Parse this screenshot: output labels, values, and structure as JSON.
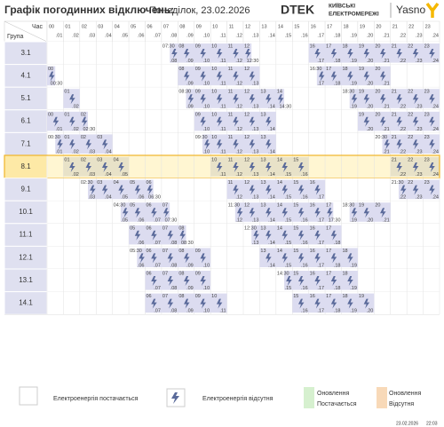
{
  "header": {
    "title": "Графік погодинних відключень:",
    "date": "Понеділок, 23.02.2026",
    "brand": "DTEK",
    "brand_sub": [
      "КИЇВСЬКІ",
      "ЕЛЕКТРОМЕРЕЖІ"
    ],
    "partner": "Yasno"
  },
  "table": {
    "hour_label": "Час",
    "group_label": "Група",
    "highlight_row": 5,
    "columns": [
      {
        "from": "00",
        "to": ".01"
      },
      {
        "from": "01",
        "to": ".02"
      },
      {
        "from": "02",
        "to": ".03"
      },
      {
        "from": "03",
        "to": ".04"
      },
      {
        "from": "04",
        "to": ".05"
      },
      {
        "from": "05",
        "to": ".06"
      },
      {
        "from": "06",
        "to": ".07"
      },
      {
        "from": "07",
        "to": ".08"
      },
      {
        "from": "08",
        "to": ".09"
      },
      {
        "from": "09",
        "to": ".10"
      },
      {
        "from": "10",
        "to": ".11"
      },
      {
        "from": "11",
        "to": ".12"
      },
      {
        "from": "12",
        "to": ".13"
      },
      {
        "from": "13",
        "to": ".14"
      },
      {
        "from": "14",
        "to": ".15"
      },
      {
        "from": "15",
        "to": ".16"
      },
      {
        "from": "16",
        "to": ".17"
      },
      {
        "from": "17",
        "to": ".18"
      },
      {
        "from": "18",
        "to": ".19"
      },
      {
        "from": "19",
        "to": ".20"
      },
      {
        "from": "20",
        "to": ".21"
      },
      {
        "from": "21",
        "to": ".22"
      },
      {
        "from": "22",
        "to": ".23"
      },
      {
        "from": "23",
        "to": ".24"
      }
    ],
    "groups": [
      {
        "name": "3.1",
        "outages": [
          {
            "from": 7.5,
            "to": 12.5,
            "from_label": "07:30",
            "to_label": "12:30"
          },
          {
            "from": 16,
            "to": 24
          }
        ]
      },
      {
        "name": "4.1",
        "outages": [
          {
            "from": 0,
            "to": 0.5,
            "to_label": "00:30"
          },
          {
            "from": 8,
            "to": 13
          },
          {
            "from": 16.5,
            "to": 21,
            "from_label": "16:30"
          }
        ]
      },
      {
        "name": "5.1",
        "outages": [
          {
            "from": 1,
            "to": 2
          },
          {
            "from": 8.5,
            "to": 14.5,
            "from_label": "08:30",
            "to_label": "14:30"
          },
          {
            "from": 18.5,
            "to": 24,
            "from_label": "18:30"
          }
        ]
      },
      {
        "name": "6.1",
        "outages": [
          {
            "from": 0,
            "to": 2.5,
            "to_label": "02:30"
          },
          {
            "from": 9,
            "to": 14
          },
          {
            "from": 19,
            "to": 24
          }
        ]
      },
      {
        "name": "7.1",
        "outages": [
          {
            "from": 0.5,
            "to": 4,
            "from_label": "00:30"
          },
          {
            "from": 9.5,
            "to": 14,
            "from_label": "09:30"
          },
          {
            "from": 20.5,
            "to": 24,
            "from_label": "20:30"
          }
        ]
      },
      {
        "name": "8.1",
        "outages": [
          {
            "from": 1,
            "to": 5
          },
          {
            "from": 10,
            "to": 16
          },
          {
            "from": 21,
            "to": 24
          }
        ]
      },
      {
        "name": "9.1",
        "outages": [
          {
            "from": 2.5,
            "to": 6.5,
            "from_label": "02:30",
            "to_label": "06:30"
          },
          {
            "from": 11,
            "to": 17
          },
          {
            "from": 21.5,
            "to": 24,
            "from_label": "21:30"
          }
        ]
      },
      {
        "name": "10.1",
        "outages": [
          {
            "from": 4.5,
            "to": 7.5,
            "from_label": "04:30",
            "to_label": "07:30"
          },
          {
            "from": 11.5,
            "to": 17.5,
            "from_label": "11:30",
            "to_label": "17:30"
          },
          {
            "from": 18.5,
            "to": 21,
            "from_label": "18:30"
          }
        ]
      },
      {
        "name": "11.1",
        "outages": [
          {
            "from": 5,
            "to": 8.5,
            "to_label": "08:30"
          },
          {
            "from": 12.5,
            "to": 18,
            "from_label": "12:30"
          }
        ]
      },
      {
        "name": "12.1",
        "outages": [
          {
            "from": 5.5,
            "to": 10,
            "from_label": "05:30"
          },
          {
            "from": 13,
            "to": 19
          }
        ]
      },
      {
        "name": "13.1",
        "outages": [
          {
            "from": 6,
            "to": 10
          },
          {
            "from": 14.5,
            "to": 19,
            "from_label": "14:30"
          }
        ]
      },
      {
        "name": "14.1",
        "outages": [
          {
            "from": 6,
            "to": 11
          },
          {
            "from": 15,
            "to": 20
          }
        ]
      }
    ]
  },
  "legend": {
    "on": "Електроенергія постачається",
    "off": "Електроенергія відсутня",
    "update_on": [
      "Оновлення",
      "Постачається"
    ],
    "update_off": [
      "Оновлення",
      "Відсутня"
    ]
  },
  "footer": {
    "date": "23.02.2026",
    "time": "22:03"
  }
}
